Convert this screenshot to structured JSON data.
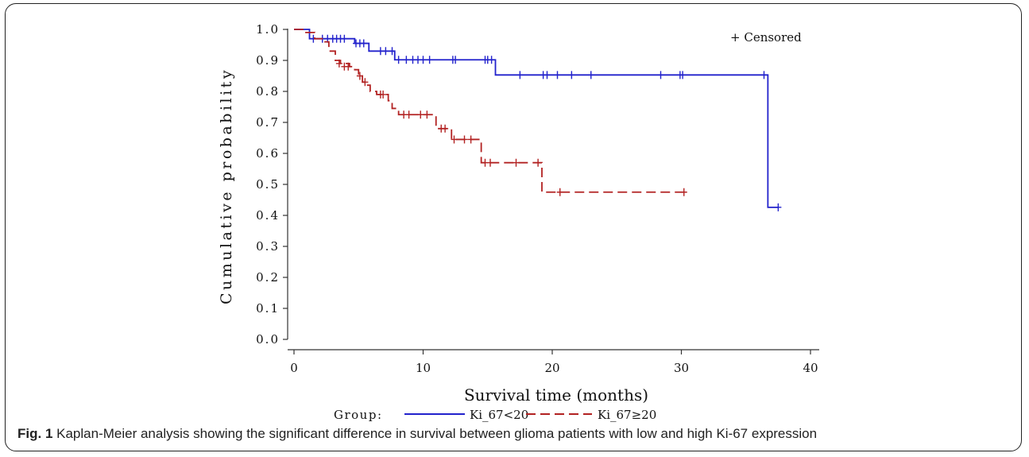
{
  "caption": {
    "label": "Fig. 1",
    "text": "Kaplan-Meier analysis showing the significant difference in survival between glioma patients with low and high Ki-67 expression"
  },
  "chart_data": {
    "type": "line",
    "xlabel": "Survival time (months)",
    "ylabel": "Cumulative probability",
    "xlim": [
      0,
      40
    ],
    "ylim": [
      0,
      1.0
    ],
    "x_ticks": [
      "0",
      "10",
      "20",
      "30",
      "40"
    ],
    "y_ticks": [
      "0.0",
      "0.1",
      "0.2",
      "0.3",
      "0.4",
      "0.5",
      "0.6",
      "0.7",
      "0.8",
      "0.9",
      "1.0"
    ],
    "grid": false,
    "censor_note": "+ Censored",
    "legend": {
      "title": "Group:",
      "placement": "bottom"
    },
    "series": [
      {
        "name": "Ki_67<20",
        "color": "#2222cc",
        "dash": "solid",
        "steps": [
          [
            0,
            1.0
          ],
          [
            0.8,
            1.0
          ],
          [
            1.2,
            0.97
          ],
          [
            4.3,
            0.97
          ],
          [
            4.7,
            0.955
          ],
          [
            5.8,
            0.93
          ],
          [
            7.6,
            0.93
          ],
          [
            7.8,
            0.902
          ],
          [
            15.5,
            0.902
          ],
          [
            15.6,
            0.853
          ],
          [
            36.6,
            0.853
          ],
          [
            36.7,
            0.426
          ],
          [
            37.5,
            0.426
          ]
        ],
        "censored": [
          [
            1.5,
            0.97
          ],
          [
            2.2,
            0.97
          ],
          [
            2.6,
            0.97
          ],
          [
            3.0,
            0.97
          ],
          [
            3.3,
            0.97
          ],
          [
            3.6,
            0.97
          ],
          [
            3.9,
            0.97
          ],
          [
            4.8,
            0.955
          ],
          [
            5.1,
            0.955
          ],
          [
            5.4,
            0.955
          ],
          [
            6.7,
            0.93
          ],
          [
            7.1,
            0.93
          ],
          [
            7.6,
            0.93
          ],
          [
            8.1,
            0.902
          ],
          [
            8.7,
            0.902
          ],
          [
            9.2,
            0.902
          ],
          [
            9.6,
            0.902
          ],
          [
            10.0,
            0.902
          ],
          [
            10.5,
            0.902
          ],
          [
            12.3,
            0.902
          ],
          [
            12.5,
            0.902
          ],
          [
            14.8,
            0.902
          ],
          [
            15.0,
            0.902
          ],
          [
            15.3,
            0.902
          ],
          [
            17.5,
            0.853
          ],
          [
            19.3,
            0.853
          ],
          [
            19.6,
            0.853
          ],
          [
            20.4,
            0.853
          ],
          [
            21.5,
            0.853
          ],
          [
            23.0,
            0.853
          ],
          [
            28.4,
            0.853
          ],
          [
            29.9,
            0.853
          ],
          [
            30.1,
            0.853
          ],
          [
            36.4,
            0.853
          ],
          [
            37.5,
            0.426
          ]
        ]
      },
      {
        "name": "Ki_67≥20",
        "color": "#b22222",
        "dash": "dashed",
        "steps": [
          [
            0,
            1.0
          ],
          [
            0.8,
            0.99
          ],
          [
            1.6,
            0.97
          ],
          [
            2.4,
            0.96
          ],
          [
            2.7,
            0.93
          ],
          [
            3.2,
            0.9
          ],
          [
            3.6,
            0.89
          ],
          [
            4.3,
            0.88
          ],
          [
            4.7,
            0.87
          ],
          [
            5.0,
            0.85
          ],
          [
            5.3,
            0.83
          ],
          [
            5.6,
            0.82
          ],
          [
            5.9,
            0.8
          ],
          [
            6.4,
            0.79
          ],
          [
            7.3,
            0.77
          ],
          [
            7.6,
            0.745
          ],
          [
            8.1,
            0.725
          ],
          [
            10.9,
            0.725
          ],
          [
            11.0,
            0.68
          ],
          [
            12.1,
            0.68
          ],
          [
            12.2,
            0.645
          ],
          [
            14.3,
            0.645
          ],
          [
            14.5,
            0.57
          ],
          [
            19.1,
            0.57
          ],
          [
            19.2,
            0.475
          ],
          [
            30.2,
            0.475
          ]
        ],
        "censored": [
          [
            3.5,
            0.89
          ],
          [
            3.9,
            0.88
          ],
          [
            4.2,
            0.88
          ],
          [
            5.1,
            0.85
          ],
          [
            5.5,
            0.83
          ],
          [
            6.7,
            0.79
          ],
          [
            6.9,
            0.79
          ],
          [
            8.5,
            0.725
          ],
          [
            8.9,
            0.725
          ],
          [
            9.8,
            0.725
          ],
          [
            10.3,
            0.725
          ],
          [
            11.4,
            0.68
          ],
          [
            11.7,
            0.68
          ],
          [
            12.4,
            0.645
          ],
          [
            13.2,
            0.645
          ],
          [
            13.7,
            0.645
          ],
          [
            14.8,
            0.57
          ],
          [
            15.2,
            0.57
          ],
          [
            17.2,
            0.57
          ],
          [
            18.9,
            0.57
          ],
          [
            20.6,
            0.475
          ],
          [
            30.2,
            0.475
          ]
        ]
      }
    ]
  }
}
